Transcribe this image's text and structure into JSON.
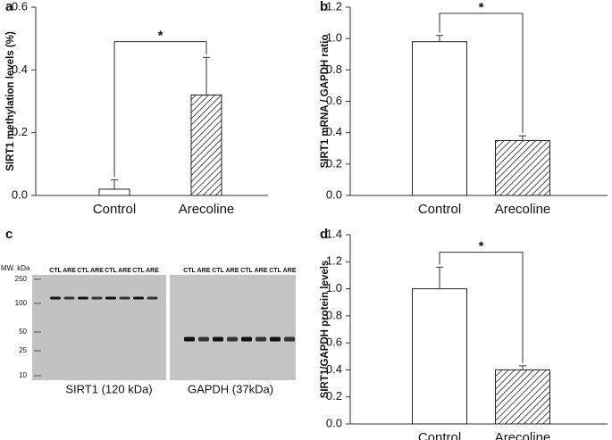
{
  "chart_data": [
    {
      "type": "bar",
      "panel": "a",
      "ylabel": "SIRT1 methylation levels (%)",
      "categories": [
        "Control",
        "Arecoline"
      ],
      "values": [
        0.02,
        0.32
      ],
      "errors": [
        0.03,
        0.12
      ],
      "fills": [
        "#ffffff",
        "hatch"
      ],
      "ylim": [
        0,
        0.6
      ],
      "yticks": [
        {
          "value": 0,
          "label": "0.0"
        },
        {
          "value": 0.2,
          "label": "0.2"
        },
        {
          "value": 0.4,
          "label": "0.4"
        },
        {
          "value": 0.6,
          "label": "0.6"
        }
      ],
      "significance": {
        "label": "*",
        "y": 0.49
      }
    },
    {
      "type": "bar",
      "panel": "b",
      "ylabel": "SIRT1 mRNA / GAPDH ratio",
      "categories": [
        "Control",
        "Arecoline"
      ],
      "values": [
        0.98,
        0.35
      ],
      "errors": [
        0.04,
        0.03
      ],
      "fills": [
        "#ffffff",
        "hatch"
      ],
      "ylim": [
        0,
        1.2
      ],
      "yticks": [
        {
          "value": 0,
          "label": "0.0"
        },
        {
          "value": 0.2,
          "label": "0.2"
        },
        {
          "value": 0.4,
          "label": "0.4"
        },
        {
          "value": 0.6,
          "label": "0.6"
        },
        {
          "value": 0.8,
          "label": "0.8"
        },
        {
          "value": 1,
          "label": "1.0"
        },
        {
          "value": 1.2,
          "label": "1.2"
        }
      ],
      "significance": {
        "label": "*",
        "y": 1.16
      }
    },
    {
      "type": "bar",
      "panel": "d",
      "ylabel": "SIRT1/GAPDH protein levels",
      "categories": [
        "Control",
        "Arecoline"
      ],
      "values": [
        1.0,
        0.4
      ],
      "errors": [
        0.16,
        0.03
      ],
      "fills": [
        "#ffffff",
        "hatch"
      ],
      "ylim": [
        0,
        1.4
      ],
      "yticks": [
        {
          "value": 0,
          "label": "0.0"
        },
        {
          "value": 0.2,
          "label": "0.2"
        },
        {
          "value": 0.4,
          "label": "0.4"
        },
        {
          "value": 0.6,
          "label": "0.6"
        },
        {
          "value": 0.8,
          "label": "0.8"
        },
        {
          "value": 1,
          "label": "1.0"
        },
        {
          "value": 1.2,
          "label": "1.2"
        },
        {
          "value": 1.4,
          "label": "1.4"
        }
      ],
      "significance": {
        "label": "*",
        "y": 1.27
      }
    }
  ],
  "blot": {
    "panel": "c",
    "mw_heading": "MW. kDa",
    "markers": [
      "250",
      "100",
      "50",
      "25",
      "10"
    ],
    "lanes": [
      "CTL",
      "ARE",
      "CTL",
      "ARE",
      "CTL",
      "ARE",
      "CTL",
      "ARE"
    ],
    "captions": [
      "SIRT1 (120 kDa)",
      "GAPDH (37kDa)"
    ]
  }
}
